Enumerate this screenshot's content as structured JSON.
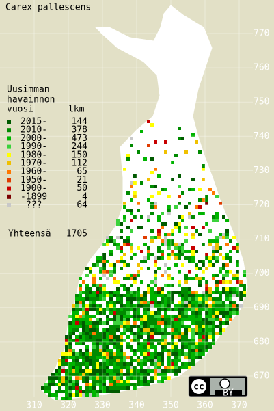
{
  "title": "Carex pallescens",
  "legend": {
    "heading": [
      "Uusimman",
      "havainnon"
    ],
    "col_year": "vuosi",
    "col_count": "lkm",
    "entries": [
      {
        "label": "2015-",
        "count": 144,
        "color": "#005a00"
      },
      {
        "label": "2010-",
        "count": 378,
        "color": "#008a00"
      },
      {
        "label": "2000-",
        "count": 473,
        "color": "#00b400"
      },
      {
        "label": "1990-",
        "count": 244,
        "color": "#3cd23c"
      },
      {
        "label": "1980-",
        "count": 150,
        "color": "#ffff00"
      },
      {
        "label": "1970-",
        "count": 112,
        "color": "#f0c000"
      },
      {
        "label": "1960-",
        "count": 65,
        "color": "#ff7800"
      },
      {
        "label": "1950-",
        "count": 21,
        "color": "#e03c00"
      },
      {
        "label": "1900-",
        "count": 50,
        "color": "#c80000"
      },
      {
        "label": "-1899",
        "count": 4,
        "color": "#7a0000"
      },
      {
        "label": "???",
        "count": 64,
        "color": "#c8c8c8"
      }
    ],
    "total_label": "Yhteensä",
    "total": 1705
  },
  "axes": {
    "y_labels": [
      770,
      760,
      750,
      740,
      730,
      720,
      710,
      700,
      690,
      680,
      670
    ],
    "x_labels": [
      310,
      320,
      330,
      340,
      350,
      360,
      370
    ]
  },
  "badge": {
    "cc": "cc",
    "by": "BY"
  }
}
